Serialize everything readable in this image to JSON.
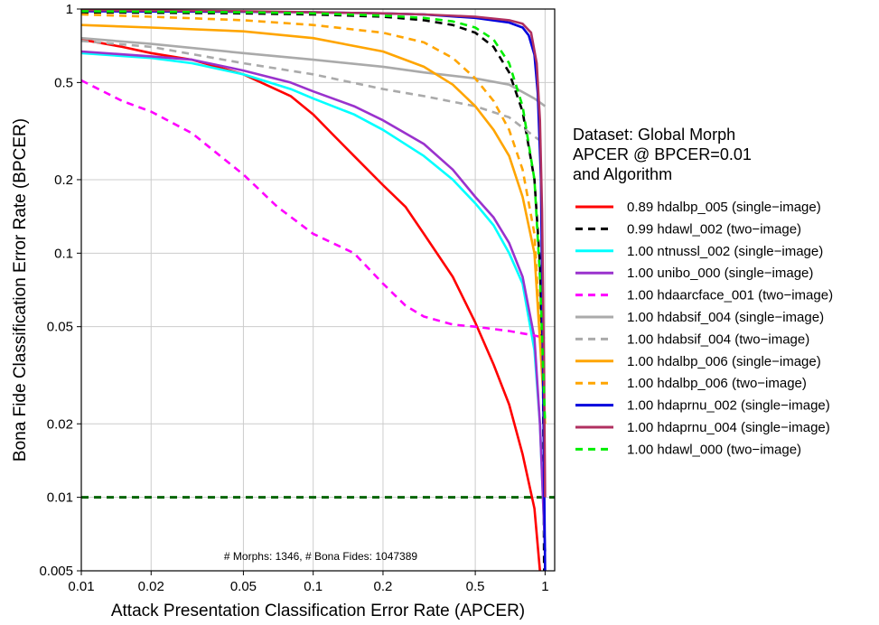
{
  "chart_data": {
    "type": "line",
    "xlabel": "Attack Presentation Classification Error Rate (APCER)",
    "ylabel": "Bona Fide Classification Error Rate (BPCER)",
    "x_scale": "log",
    "y_scale": "log",
    "xlim": [
      0.01,
      1.1
    ],
    "ylim": [
      0.005,
      1
    ],
    "x_ticks": [
      {
        "value": 0.01,
        "label": "0.01"
      },
      {
        "value": 0.02,
        "label": "0.02"
      },
      {
        "value": 0.05,
        "label": "0.05"
      },
      {
        "value": 0.1,
        "label": "0.1"
      },
      {
        "value": 0.2,
        "label": "0.2"
      },
      {
        "value": 0.5,
        "label": "0.5"
      },
      {
        "value": 1,
        "label": "1"
      }
    ],
    "y_ticks": [
      {
        "value": 0.005,
        "label": "0.005"
      },
      {
        "value": 0.01,
        "label": "0.01"
      },
      {
        "value": 0.02,
        "label": "0.02"
      },
      {
        "value": 0.05,
        "label": "0.05"
      },
      {
        "value": 0.1,
        "label": "0.1"
      },
      {
        "value": 0.2,
        "label": "0.2"
      },
      {
        "value": 0.5,
        "label": "0.5"
      },
      {
        "value": 1,
        "label": "1"
      }
    ],
    "grid": true,
    "legend_position": "right",
    "legend_title": [
      "Dataset: Global Morph",
      "APCER @ BPCER=0.01",
      "and Algorithm"
    ],
    "annotation": "# Morphs: 1346, # Bona Fides: 1047389",
    "reference_line": {
      "y": 0.01,
      "color": "#006400",
      "dash": "dashed"
    },
    "series": [
      {
        "name": "0.89  hdalbp_005 (single−image)",
        "color": "#ff0000",
        "dash": "solid",
        "x": [
          0.01,
          0.015,
          0.02,
          0.03,
          0.05,
          0.08,
          0.1,
          0.12,
          0.15,
          0.2,
          0.25,
          0.3,
          0.4,
          0.5,
          0.6,
          0.7,
          0.8,
          0.9,
          0.95
        ],
        "y": [
          0.75,
          0.7,
          0.66,
          0.62,
          0.54,
          0.44,
          0.37,
          0.31,
          0.25,
          0.19,
          0.155,
          0.12,
          0.08,
          0.052,
          0.035,
          0.024,
          0.015,
          0.009,
          0.005
        ]
      },
      {
        "name": "0.99  hdawl_002 (two−image)",
        "color": "#000000",
        "dash": "dashed",
        "x": [
          0.01,
          0.05,
          0.1,
          0.2,
          0.3,
          0.4,
          0.5,
          0.6,
          0.7,
          0.8,
          0.9,
          0.95,
          0.98,
          0.99
        ],
        "y": [
          0.97,
          0.96,
          0.95,
          0.93,
          0.9,
          0.86,
          0.8,
          0.7,
          0.55,
          0.38,
          0.2,
          0.09,
          0.03,
          0.005
        ]
      },
      {
        "name": "1.00  ntnussl_002 (single−image)",
        "color": "#00ffff",
        "dash": "solid",
        "x": [
          0.01,
          0.02,
          0.03,
          0.05,
          0.08,
          0.1,
          0.15,
          0.2,
          0.3,
          0.4,
          0.5,
          0.6,
          0.7,
          0.8,
          0.9,
          0.95,
          1.0
        ],
        "y": [
          0.66,
          0.63,
          0.6,
          0.54,
          0.47,
          0.43,
          0.37,
          0.32,
          0.25,
          0.2,
          0.16,
          0.13,
          0.1,
          0.075,
          0.04,
          0.02,
          0.006
        ]
      },
      {
        "name": "1.00  unibo_000 (single−image)",
        "color": "#9a32cd",
        "dash": "solid",
        "x": [
          0.01,
          0.02,
          0.03,
          0.05,
          0.08,
          0.1,
          0.15,
          0.2,
          0.3,
          0.4,
          0.5,
          0.6,
          0.7,
          0.8,
          0.9,
          0.95,
          1.0
        ],
        "y": [
          0.67,
          0.64,
          0.62,
          0.56,
          0.5,
          0.46,
          0.4,
          0.35,
          0.28,
          0.22,
          0.17,
          0.14,
          0.11,
          0.08,
          0.045,
          0.02,
          0.006
        ]
      },
      {
        "name": "1.00  hdaarcface_001 (two−image)",
        "color": "#ff00ff",
        "dash": "dashed",
        "x": [
          0.01,
          0.015,
          0.02,
          0.03,
          0.05,
          0.07,
          0.1,
          0.15,
          0.2,
          0.25,
          0.3,
          0.4,
          0.5,
          0.7,
          0.9,
          1.0
        ],
        "y": [
          0.51,
          0.42,
          0.38,
          0.31,
          0.21,
          0.155,
          0.12,
          0.1,
          0.075,
          0.061,
          0.055,
          0.051,
          0.05,
          0.048,
          0.046,
          0.045
        ]
      },
      {
        "name": "1.00  hdabsif_004 (single−image)",
        "color": "#aaaaaa",
        "dash": "solid",
        "x": [
          0.01,
          0.02,
          0.05,
          0.1,
          0.2,
          0.3,
          0.5,
          0.7,
          0.9,
          1.0
        ],
        "y": [
          0.76,
          0.72,
          0.66,
          0.62,
          0.58,
          0.55,
          0.52,
          0.49,
          0.43,
          0.4
        ]
      },
      {
        "name": "1.00  hdabsif_004 (two−image)",
        "color": "#aaaaaa",
        "dash": "dashed",
        "x": [
          0.01,
          0.02,
          0.05,
          0.1,
          0.2,
          0.3,
          0.5,
          0.7,
          0.9,
          1.0
        ],
        "y": [
          0.74,
          0.7,
          0.6,
          0.54,
          0.47,
          0.44,
          0.4,
          0.36,
          0.3,
          0.28
        ]
      },
      {
        "name": "1.00  hdalbp_006 (single−image)",
        "color": "#ffa500",
        "dash": "solid",
        "x": [
          0.01,
          0.02,
          0.05,
          0.1,
          0.2,
          0.3,
          0.4,
          0.5,
          0.6,
          0.7,
          0.8,
          0.9,
          1.0
        ],
        "y": [
          0.86,
          0.84,
          0.81,
          0.76,
          0.67,
          0.58,
          0.49,
          0.4,
          0.32,
          0.25,
          0.17,
          0.1,
          0.02
        ]
      },
      {
        "name": "1.00  hdalbp_006 (two−image)",
        "color": "#ffa500",
        "dash": "dashed",
        "x": [
          0.01,
          0.02,
          0.05,
          0.1,
          0.2,
          0.3,
          0.4,
          0.5,
          0.6,
          0.7,
          0.8,
          0.9,
          1.0
        ],
        "y": [
          0.95,
          0.93,
          0.9,
          0.86,
          0.8,
          0.73,
          0.63,
          0.52,
          0.42,
          0.32,
          0.22,
          0.12,
          0.02
        ]
      },
      {
        "name": "1.00  hdaprnu_002 (single−image)",
        "color": "#0000dd",
        "dash": "solid",
        "x": [
          0.01,
          0.05,
          0.1,
          0.2,
          0.3,
          0.5,
          0.7,
          0.8,
          0.85,
          0.9,
          0.93,
          0.96,
          1.0
        ],
        "y": [
          0.98,
          0.975,
          0.97,
          0.96,
          0.95,
          0.92,
          0.88,
          0.84,
          0.78,
          0.65,
          0.45,
          0.2,
          0.005
        ]
      },
      {
        "name": "1.00  hdaprnu_004 (single−image)",
        "color": "#b03060",
        "dash": "solid",
        "x": [
          0.01,
          0.05,
          0.1,
          0.2,
          0.3,
          0.5,
          0.7,
          0.8,
          0.87,
          0.92,
          0.95,
          0.97,
          0.99,
          1.0
        ],
        "y": [
          0.99,
          0.98,
          0.97,
          0.96,
          0.95,
          0.93,
          0.9,
          0.87,
          0.8,
          0.6,
          0.35,
          0.15,
          0.03,
          0.01
        ]
      },
      {
        "name": "1.00  hdawl_000 (two−image)",
        "color": "#00ee00",
        "dash": "dashed",
        "x": [
          0.01,
          0.05,
          0.1,
          0.2,
          0.3,
          0.4,
          0.5,
          0.6,
          0.7,
          0.8,
          0.9,
          0.95,
          1.0
        ],
        "y": [
          0.98,
          0.97,
          0.96,
          0.94,
          0.92,
          0.89,
          0.84,
          0.75,
          0.6,
          0.4,
          0.2,
          0.08,
          0.02
        ]
      }
    ]
  }
}
